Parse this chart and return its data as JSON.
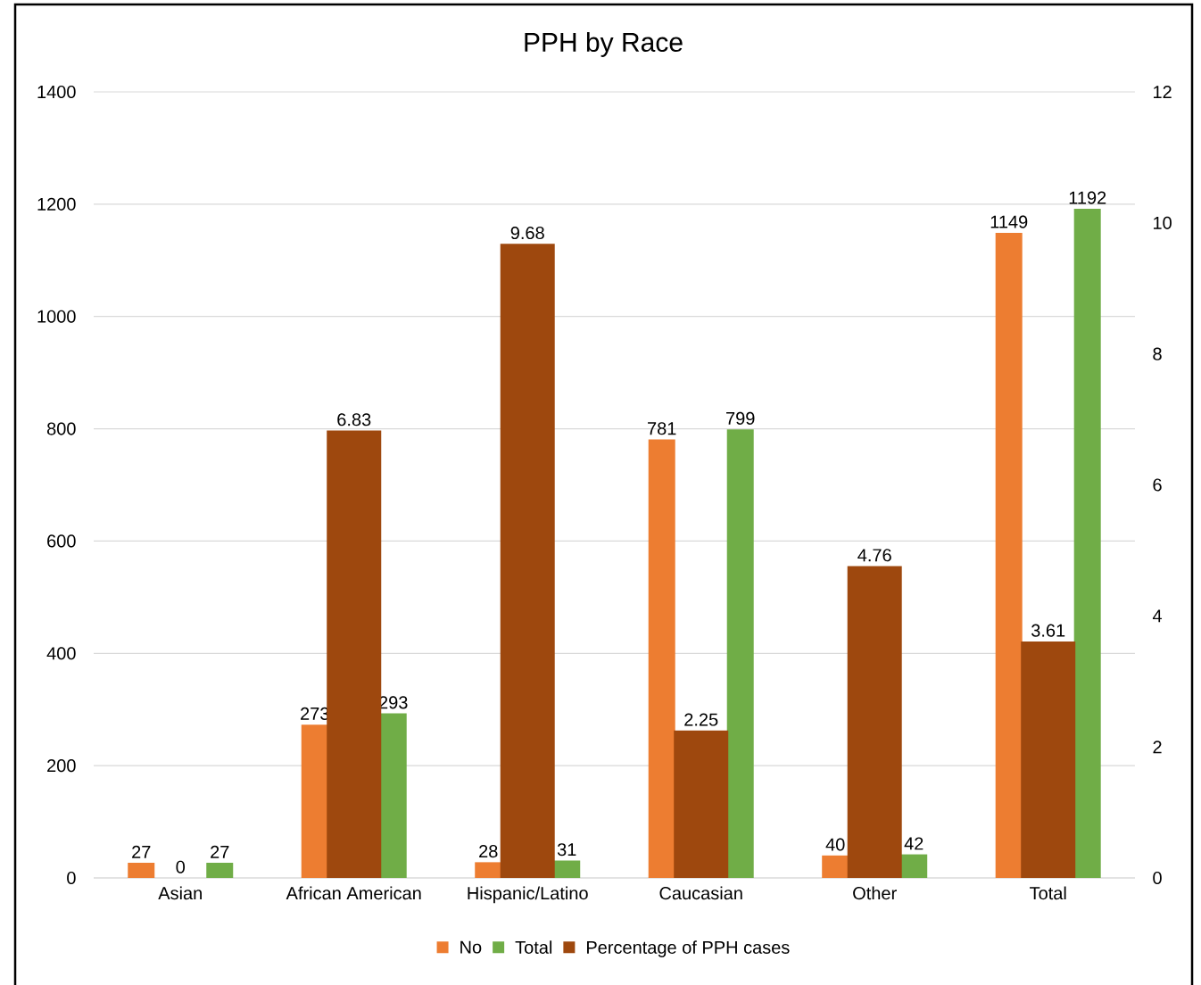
{
  "chart_data": {
    "type": "bar",
    "title": "PPH by Race",
    "categories": [
      "Asian",
      "African American",
      "Hispanic/Latino",
      "Caucasian",
      "Other",
      "Total"
    ],
    "series": [
      {
        "name": "No",
        "color": "#ed7d31",
        "values": [
          27,
          273,
          28,
          781,
          40,
          1149
        ]
      },
      {
        "name": "Total",
        "color": "#70ad47",
        "values": [
          27,
          293,
          31,
          799,
          42,
          1192
        ]
      },
      {
        "name": "Percentage of PPH cases",
        "color": "#9e480e",
        "axis": "y2",
        "values": [
          0,
          6.83,
          9.68,
          2.25,
          4.76,
          3.61
        ]
      }
    ],
    "ylim": [
      0,
      1400
    ],
    "yticks": [
      0,
      200,
      400,
      600,
      800,
      1000,
      1200,
      1400
    ],
    "y2lim": [
      0,
      12
    ],
    "y2ticks": [
      0,
      2,
      4,
      6,
      8,
      10,
      12
    ],
    "data_labels": true,
    "grid": "y",
    "legend": "bottom"
  }
}
